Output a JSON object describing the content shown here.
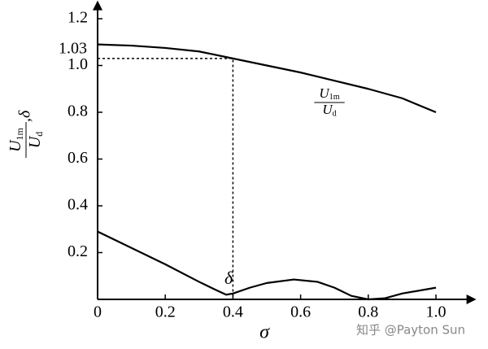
{
  "chart_data": {
    "type": "line",
    "x_label": "σ",
    "y_label": {
      "num": "U",
      "num_sub": "1m",
      "den": "U",
      "den_sub": "d",
      "suffix": ",δ"
    },
    "xlim": [
      0,
      1.1
    ],
    "ylim": [
      0,
      1.25
    ],
    "xticks": [
      0,
      0.2,
      0.4,
      0.6,
      0.8,
      {
        "value": 1,
        "label": "1.0"
      }
    ],
    "yticks": [
      0.2,
      0.4,
      0.6,
      0.8,
      {
        "value": 1,
        "label": "1.0"
      },
      1.2
    ],
    "reference": {
      "x": 0.4,
      "y": 1.03
    },
    "series": [
      {
        "label": {
          "num": "U",
          "num_sub": "1m",
          "den": "U",
          "den_sub": "d"
        },
        "color": "#000000",
        "x": [
          0,
          0.1,
          0.2,
          0.3,
          0.4,
          0.5,
          0.6,
          0.7,
          0.8,
          0.9,
          1.0
        ],
        "values": [
          1.09,
          1.085,
          1.075,
          1.06,
          1.03,
          1.0,
          0.97,
          0.935,
          0.9,
          0.86,
          0.8
        ]
      },
      {
        "name": "δ",
        "color": "#000000",
        "x": [
          0,
          0.1,
          0.2,
          0.3,
          0.35,
          0.38,
          0.4,
          0.45,
          0.5,
          0.58,
          0.65,
          0.7,
          0.75,
          0.8,
          0.85,
          0.9,
          1.0
        ],
        "values": [
          0.29,
          0.22,
          0.15,
          0.075,
          0.04,
          0.02,
          0.025,
          0.05,
          0.07,
          0.085,
          0.075,
          0.05,
          0.015,
          0.0,
          0.005,
          0.025,
          0.05
        ]
      }
    ],
    "watermark": "知乎 @Payton Sun"
  }
}
